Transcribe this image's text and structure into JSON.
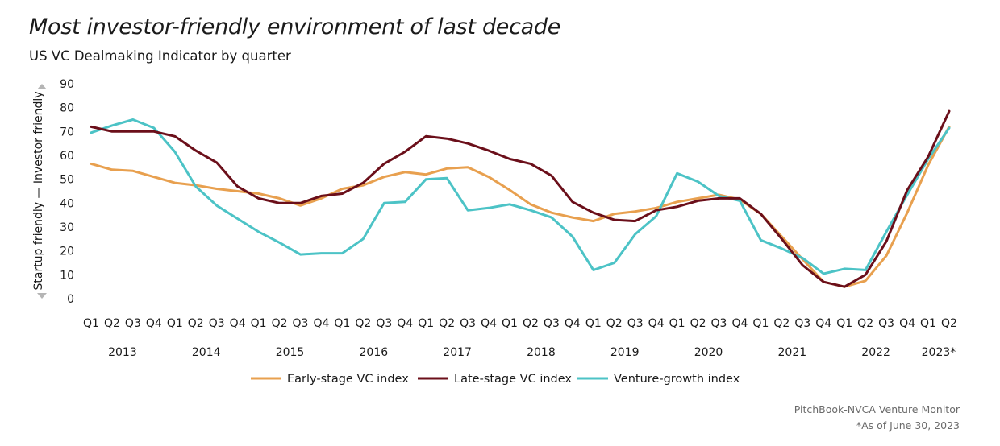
{
  "chart_data": {
    "type": "line",
    "title": "Most investor-friendly environment of last decade",
    "subtitle": "US VC Dealmaking Indicator by quarter",
    "ylabel_low": "Startup friendly",
    "ylabel_high": "Investor friendly",
    "ylabel_sep": "—",
    "ylim": [
      0,
      90
    ],
    "yticks": [
      0,
      10,
      20,
      30,
      40,
      50,
      60,
      70,
      80,
      90
    ],
    "grid": false,
    "legend_position": "bottom",
    "quarters": [
      "Q1",
      "Q2",
      "Q3",
      "Q4",
      "Q1",
      "Q2",
      "Q3",
      "Q4",
      "Q1",
      "Q2",
      "Q3",
      "Q4",
      "Q1",
      "Q2",
      "Q3",
      "Q4",
      "Q1",
      "Q2",
      "Q3",
      "Q4",
      "Q1",
      "Q2",
      "Q3",
      "Q4",
      "Q1",
      "Q2",
      "Q3",
      "Q4",
      "Q1",
      "Q2",
      "Q3",
      "Q4",
      "Q1",
      "Q2",
      "Q3",
      "Q4",
      "Q1",
      "Q2",
      "Q3",
      "Q4",
      "Q1",
      "Q2"
    ],
    "years": [
      {
        "label": "2013",
        "start": 0,
        "end": 3
      },
      {
        "label": "2014",
        "start": 4,
        "end": 7
      },
      {
        "label": "2015",
        "start": 8,
        "end": 11
      },
      {
        "label": "2016",
        "start": 12,
        "end": 15
      },
      {
        "label": "2017",
        "start": 16,
        "end": 19
      },
      {
        "label": "2018",
        "start": 20,
        "end": 23
      },
      {
        "label": "2019",
        "start": 24,
        "end": 27
      },
      {
        "label": "2020",
        "start": 28,
        "end": 31
      },
      {
        "label": "2021",
        "start": 32,
        "end": 35
      },
      {
        "label": "2022",
        "start": 36,
        "end": 39
      },
      {
        "label": "2023*",
        "start": 40,
        "end": 41
      }
    ],
    "series": [
      {
        "name": "Early-stage VC index",
        "color": "#E8A04F",
        "values": [
          56.5,
          54,
          53.5,
          51,
          48.5,
          47.5,
          46,
          45,
          44,
          42,
          39,
          42,
          46,
          47.5,
          51,
          53,
          52,
          54.5,
          55,
          51,
          45.5,
          39.5,
          36,
          34,
          32.5,
          35.5,
          36.5,
          38,
          40.5,
          42,
          43.5,
          41.5,
          35.5,
          26,
          16.5,
          7,
          5,
          7.5,
          18,
          36,
          56,
          72
        ]
      },
      {
        "name": "Late-stage VC index",
        "color": "#6B0F1A",
        "values": [
          72,
          70,
          70,
          70,
          68,
          62,
          57,
          47,
          42,
          40,
          40,
          43,
          44,
          48.5,
          56.5,
          61.5,
          68,
          67,
          65,
          62,
          58.5,
          56.5,
          51.5,
          40.5,
          36,
          33,
          32.5,
          37,
          38.5,
          41,
          42,
          42,
          35.5,
          25,
          14,
          7,
          5,
          10,
          24,
          45.5,
          59.5,
          78.5
        ]
      },
      {
        "name": "Venture-growth index",
        "color": "#4CC3C6",
        "values": [
          69.5,
          72.5,
          75,
          71.5,
          61.5,
          47,
          39,
          33.5,
          28,
          23.5,
          18.5,
          19,
          19,
          25,
          40,
          40.5,
          50,
          50.5,
          37,
          38,
          39.5,
          37,
          34,
          26,
          12,
          15,
          27,
          34.5,
          52.5,
          49,
          43,
          41,
          24.5,
          21,
          17,
          10.5,
          12.5,
          12,
          28,
          43.5,
          58.5,
          71.5
        ]
      }
    ]
  },
  "source": {
    "line1": "PitchBook-NVCA Venture Monitor",
    "line2": "*As of June 30, 2023"
  }
}
